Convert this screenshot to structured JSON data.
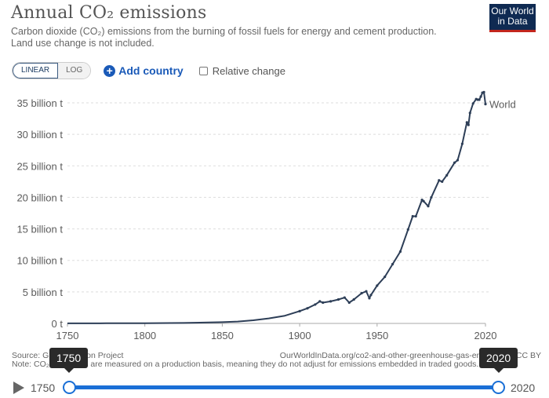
{
  "header": {
    "title": "Annual CO₂ emissions",
    "subtitle_line1": "Carbon dioxide (CO₂) emissions from the burning of fossil fuels for energy and cement production.",
    "subtitle_line2": "Land use change is not included.",
    "logo_line1": "Our World",
    "logo_line2": "in Data"
  },
  "controls": {
    "linear_label": "LINEAR",
    "log_label": "LOG",
    "add_country_label": "Add country",
    "relative_change_label": "Relative change",
    "relative_change_checked": false,
    "scale_selected": "LINEAR"
  },
  "footer": {
    "source": "Source: Global Carbon Project",
    "url": "OurWorldInData.org/co2-and-other-greenhouse-gas-emissions • CC BY",
    "note": "Note: CO₂ emissions are measured on a production basis, meaning they do not adjust for emissions embedded in traded goods."
  },
  "timeline": {
    "start_year": "1750",
    "end_year": "2020",
    "start_tooltip": "1750",
    "end_tooltip": "2020",
    "play_icon": "play-icon"
  },
  "colors": {
    "series": "#2d3e57",
    "accent": "#1a6fd6",
    "grid": "#dddddd",
    "logo_bg": "#0f2a52",
    "logo_bar": "#c3261d"
  },
  "chart_data": {
    "type": "line",
    "title": "Annual CO₂ emissions",
    "xlabel": "",
    "ylabel": "",
    "xlim": [
      1750,
      2020
    ],
    "ylim": [
      0,
      35
    ],
    "x_ticks": [
      "1750",
      "1800",
      "1850",
      "1900",
      "1950",
      "2020"
    ],
    "y_ticks": [
      "0 t",
      "5 billion t",
      "10 billion t",
      "15 billion t",
      "20 billion t",
      "25 billion t",
      "30 billion t",
      "35 billion t"
    ],
    "y_tick_values": [
      0,
      5,
      10,
      15,
      20,
      25,
      30,
      35
    ],
    "grid": true,
    "legend": "end-of-line label",
    "series": [
      {
        "name": "World",
        "units": "billion t",
        "x": [
          1750,
          1775,
          1800,
          1825,
          1850,
          1860,
          1870,
          1880,
          1890,
          1900,
          1905,
          1910,
          1913,
          1915,
          1920,
          1925,
          1929,
          1932,
          1935,
          1940,
          1943,
          1945,
          1946,
          1950,
          1955,
          1960,
          1965,
          1970,
          1973,
          1975,
          1979,
          1980,
          1983,
          1985,
          1990,
          1992,
          1995,
          2000,
          2002,
          2005,
          2008,
          2009,
          2010,
          2012,
          2014,
          2015,
          2016,
          2017,
          2018,
          2019,
          2020
        ],
        "values": [
          0.01,
          0.02,
          0.03,
          0.07,
          0.2,
          0.3,
          0.5,
          0.8,
          1.2,
          1.95,
          2.4,
          3.0,
          3.5,
          3.3,
          3.5,
          3.8,
          4.1,
          3.3,
          3.8,
          4.8,
          5.1,
          4.0,
          4.5,
          6.0,
          7.4,
          9.4,
          11.4,
          14.9,
          17.0,
          17.0,
          19.6,
          19.4,
          18.6,
          20.0,
          22.7,
          22.5,
          23.5,
          25.5,
          25.9,
          28.5,
          31.9,
          31.5,
          33.4,
          34.9,
          35.6,
          35.5,
          35.5,
          36.0,
          36.6,
          36.7,
          34.8
        ]
      }
    ]
  }
}
